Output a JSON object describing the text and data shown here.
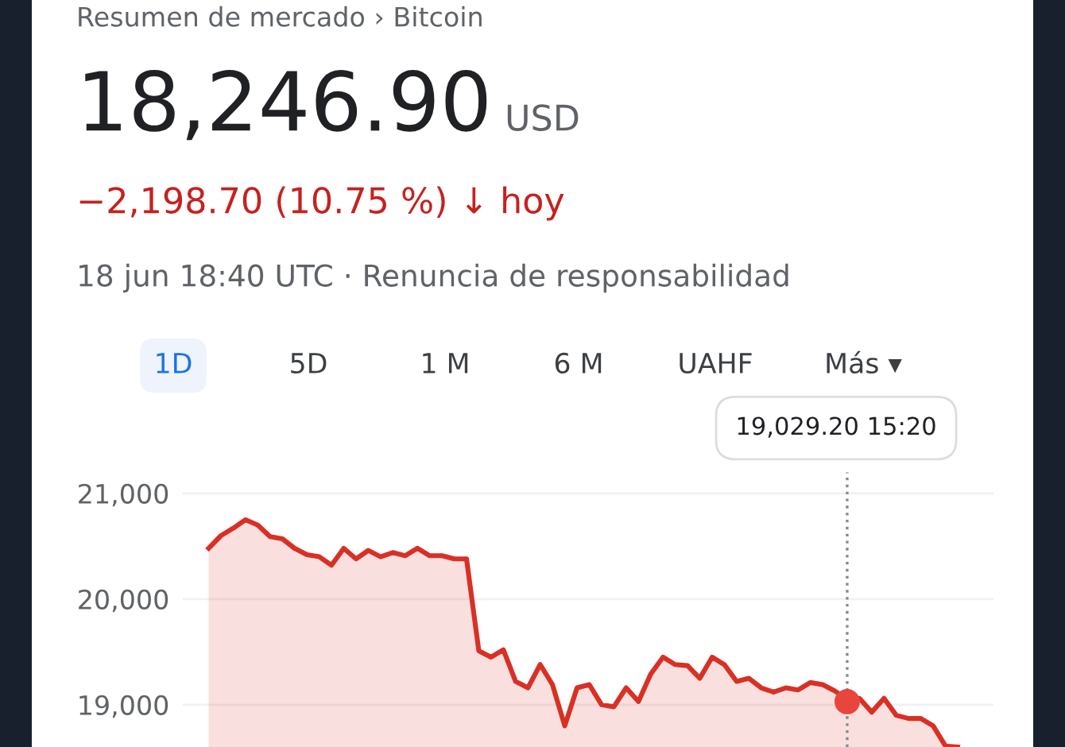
{
  "chart_data": {
    "type": "area",
    "title": "Resumen de mercado › Bitcoin",
    "subtitle": "18,246.90 USD",
    "annotations": [
      "−2,198.70 (10.75 %) ↓ hoy",
      "18 jun 18:40 UTC · Renuncia de responsabilidad",
      "1D",
      "5D",
      "1 M",
      "6 M",
      "UAHF",
      "Más ▾",
      "19,029.20 15:20"
    ],
    "categories": [
      null,
      null,
      null,
      null,
      null,
      null,
      null,
      null,
      null,
      null,
      null,
      null,
      null,
      null,
      null,
      null,
      null,
      null,
      null,
      null,
      null,
      null,
      null,
      null,
      null,
      null,
      null,
      null,
      null,
      null,
      null,
      null,
      null,
      null,
      null,
      null,
      null,
      null,
      null,
      null,
      null,
      null,
      null,
      null,
      null,
      null,
      null,
      null,
      null,
      null,
      null,
      null,
      null,
      null,
      null,
      null,
      null,
      null,
      null,
      null,
      null,
      null
    ],
    "ylim": [
      18600,
      21200
    ],
    "yticks": [
      {
        "value": 19000,
        "label": "19,000"
      },
      {
        "value": 20000,
        "label": "20,000"
      },
      {
        "value": 21000,
        "label": "21,000"
      }
    ],
    "tick_labels": "y",
    "grid": "y",
    "series": [
      {
        "color": "#d93025",
        "values": [
          20480,
          20600,
          20670,
          20750,
          20700,
          20590,
          20570,
          20480,
          20420,
          20400,
          20320,
          20480,
          20380,
          20460,
          20400,
          20440,
          20410,
          20480,
          20410,
          20410,
          20380,
          20380,
          19510,
          19450,
          19520,
          19220,
          19160,
          19380,
          19190,
          18800,
          19160,
          19190,
          19000,
          18980,
          19160,
          19030,
          19290,
          19450,
          19380,
          19370,
          19250,
          19450,
          19380,
          19220,
          19250,
          19160,
          19120,
          19160,
          19140,
          19210,
          19190,
          19130,
          19050,
          19060,
          18930,
          19060,
          18900,
          18870,
          18870,
          18800,
          18610,
          18600
        ]
      },
      {
        "type": "scatter",
        "color": "#e8453c",
        "values": [
          null,
          null,
          null,
          null,
          null,
          null,
          null,
          null,
          null,
          null,
          null,
          null,
          null,
          null,
          null,
          null,
          null,
          null,
          null,
          null,
          null,
          null,
          null,
          null,
          null,
          null,
          null,
          null,
          null,
          null,
          null,
          null,
          null,
          null,
          null,
          null,
          null,
          null,
          null,
          null,
          null,
          null,
          null,
          null,
          null,
          null,
          null,
          null,
          null,
          null,
          null,
          null,
          19029.2,
          null,
          null,
          null,
          null,
          null,
          null,
          null,
          null,
          null
        ]
      }
    ]
  }
}
